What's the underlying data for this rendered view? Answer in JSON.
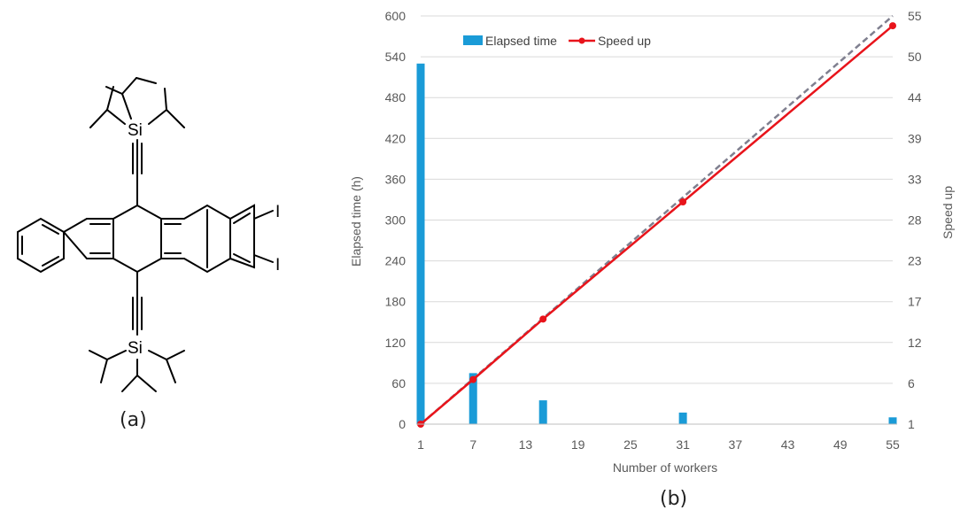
{
  "panel_a": {
    "caption": "(a)",
    "atoms": {
      "si_top": "Si",
      "si_bottom": "Si",
      "iodine_1": "I",
      "iodine_2": "I"
    }
  },
  "panel_b": {
    "caption": "(b)"
  },
  "colors": {
    "bar": "#1a9bd7",
    "speedup": "#e8141b",
    "ideal": "#7f7f8f",
    "grid": "#d9d9d9"
  },
  "chart_data": {
    "type": "bar",
    "title": "",
    "xlabel": "Number of workers",
    "ylabel": "Elapsed time (h)",
    "y2label": "Speed up",
    "xlim": [
      1,
      55
    ],
    "ylim": [
      0,
      600
    ],
    "y2lim": [
      1,
      55
    ],
    "x_ticks": [
      1,
      7,
      13,
      19,
      25,
      31,
      37,
      43,
      49,
      55
    ],
    "y_ticks": [
      0,
      60,
      120,
      180,
      240,
      300,
      360,
      420,
      480,
      540,
      600
    ],
    "y2_ticks": [
      "1",
      "6",
      "12",
      "17",
      "23",
      "28",
      "33",
      "39",
      "44",
      "50",
      "55"
    ],
    "legend_position": "top-left",
    "grid": "horizontal",
    "series": [
      {
        "name": "Elapsed time",
        "type": "bar",
        "axis": "left",
        "x": [
          1,
          7,
          15,
          31,
          55
        ],
        "values": [
          530,
          75,
          35,
          17,
          10
        ]
      },
      {
        "name": "Speed up",
        "type": "line",
        "axis": "right",
        "marker": "circle",
        "x": [
          1,
          7,
          15,
          31,
          55
        ],
        "values": [
          1,
          6.9,
          14.9,
          30.4,
          53.7
        ]
      },
      {
        "type": "line",
        "axis": "right",
        "style": "dashed",
        "x": [
          1,
          55
        ],
        "values": [
          1,
          55
        ]
      }
    ]
  }
}
